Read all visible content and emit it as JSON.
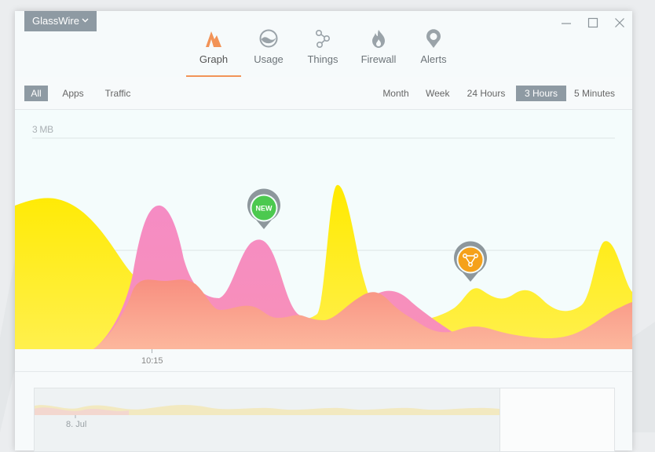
{
  "app": {
    "brand_label": "GlassWire"
  },
  "tabs": [
    {
      "label": "Graph",
      "icon": "graph-icon",
      "active": true
    },
    {
      "label": "Usage",
      "icon": "usage-icon",
      "active": false
    },
    {
      "label": "Things",
      "icon": "things-icon",
      "active": false
    },
    {
      "label": "Firewall",
      "icon": "firewall-icon",
      "active": false
    },
    {
      "label": "Alerts",
      "icon": "alerts-icon",
      "active": false
    }
  ],
  "filters": {
    "all": "All",
    "apps": "Apps",
    "traffic": "Traffic",
    "selected": "All"
  },
  "ranges": {
    "month": "Month",
    "week": "Week",
    "hours24": "24  Hours",
    "hours3": "3  Hours",
    "minutes5": "5 Minutes",
    "selected": "3  Hours"
  },
  "graph": {
    "y_label": "3 MB",
    "x_tick": "10:15",
    "markers": [
      {
        "label": "NEW",
        "color": "#4cc94f",
        "icon": "new-app-badge"
      },
      {
        "label": "",
        "color": "#f5a11a",
        "icon": "network-device-icon"
      }
    ]
  },
  "timeline": {
    "date_label": "8. Jul"
  },
  "colors": {
    "accent": "#f29357",
    "upload": "#ffe600",
    "download": "#f58cc4",
    "button_selected": "#8e9aa3"
  }
}
